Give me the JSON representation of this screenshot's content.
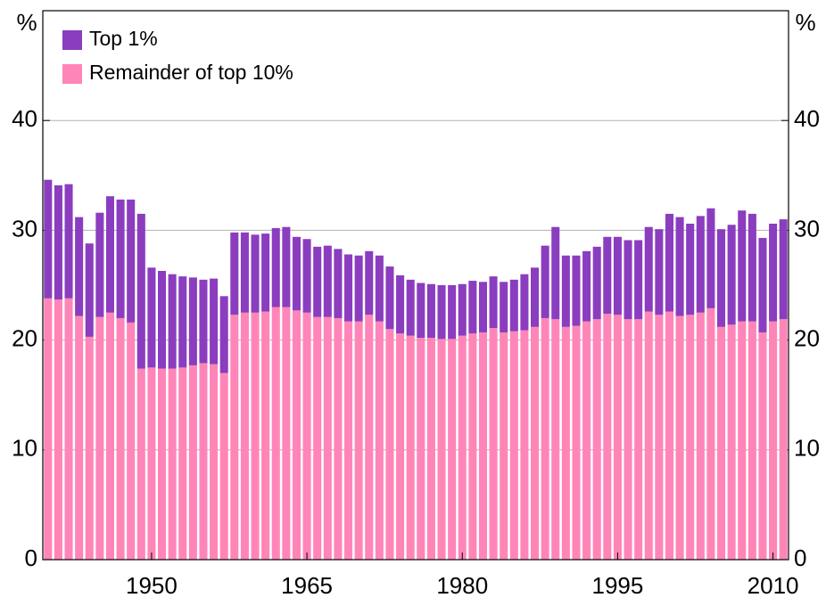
{
  "chart_data": {
    "type": "stacked_bar",
    "y_label": "%",
    "x": [
      1940,
      1941,
      1942,
      1943,
      1944,
      1945,
      1946,
      1947,
      1948,
      1949,
      1950,
      1951,
      1952,
      1953,
      1954,
      1955,
      1956,
      1957,
      1958,
      1959,
      1960,
      1961,
      1962,
      1963,
      1964,
      1965,
      1966,
      1967,
      1968,
      1969,
      1970,
      1971,
      1972,
      1973,
      1974,
      1975,
      1976,
      1977,
      1978,
      1979,
      1980,
      1981,
      1982,
      1983,
      1984,
      1985,
      1986,
      1987,
      1988,
      1989,
      1990,
      1991,
      1992,
      1993,
      1994,
      1995,
      1996,
      1997,
      1998,
      1999,
      2000,
      2001,
      2002,
      2003,
      2004,
      2005,
      2006,
      2007,
      2008,
      2009,
      2010,
      2011
    ],
    "series": [
      {
        "name": "Remainder of top 10%",
        "color": "#ff85b8",
        "values": [
          23.8,
          23.7,
          23.8,
          22.2,
          20.3,
          22.1,
          22.5,
          22.0,
          21.6,
          17.4,
          17.5,
          17.4,
          17.4,
          17.5,
          17.7,
          17.9,
          17.8,
          17.0,
          22.3,
          22.5,
          22.5,
          22.6,
          23.0,
          23.0,
          22.7,
          22.5,
          22.1,
          22.1,
          22.0,
          21.7,
          21.7,
          22.3,
          21.7,
          21.0,
          20.6,
          20.4,
          20.2,
          20.2,
          20.1,
          20.1,
          20.4,
          20.6,
          20.7,
          21.1,
          20.7,
          20.8,
          20.9,
          21.2,
          22.0,
          21.9,
          21.2,
          21.3,
          21.7,
          21.9,
          22.4,
          22.3,
          21.9,
          21.9,
          22.6,
          22.3,
          22.6,
          22.2,
          22.3,
          22.5,
          22.9,
          21.2,
          21.4,
          21.7,
          21.7,
          20.7,
          21.7,
          21.9
        ]
      },
      {
        "name": "Top 1%",
        "color": "#8b3dbf",
        "values": [
          10.8,
          10.4,
          10.4,
          9.0,
          8.5,
          9.5,
          10.6,
          10.8,
          11.2,
          14.1,
          9.1,
          8.9,
          8.6,
          8.3,
          8.0,
          7.6,
          7.8,
          7.0,
          7.5,
          7.3,
          7.1,
          7.1,
          7.2,
          7.3,
          6.7,
          6.7,
          6.4,
          6.5,
          6.3,
          6.1,
          6.0,
          5.8,
          6.0,
          5.7,
          5.3,
          5.1,
          5.0,
          4.9,
          4.9,
          4.9,
          4.7,
          4.8,
          4.6,
          4.7,
          4.6,
          4.7,
          5.1,
          5.4,
          6.6,
          8.4,
          6.5,
          6.4,
          6.4,
          6.6,
          7.0,
          7.1,
          7.2,
          7.2,
          7.7,
          7.8,
          8.9,
          9.0,
          8.3,
          8.8,
          9.1,
          8.9,
          9.1,
          10.1,
          9.8,
          8.6,
          8.9,
          9.1
        ]
      }
    ],
    "xlim": [
      1939.5,
      2011.5
    ],
    "xticks": [
      1950,
      1965,
      1980,
      1995,
      2010
    ],
    "ylim": [
      0,
      50
    ],
    "yticks": [
      0,
      10,
      20,
      30,
      40
    ],
    "grid": true,
    "legend": "top-left"
  }
}
